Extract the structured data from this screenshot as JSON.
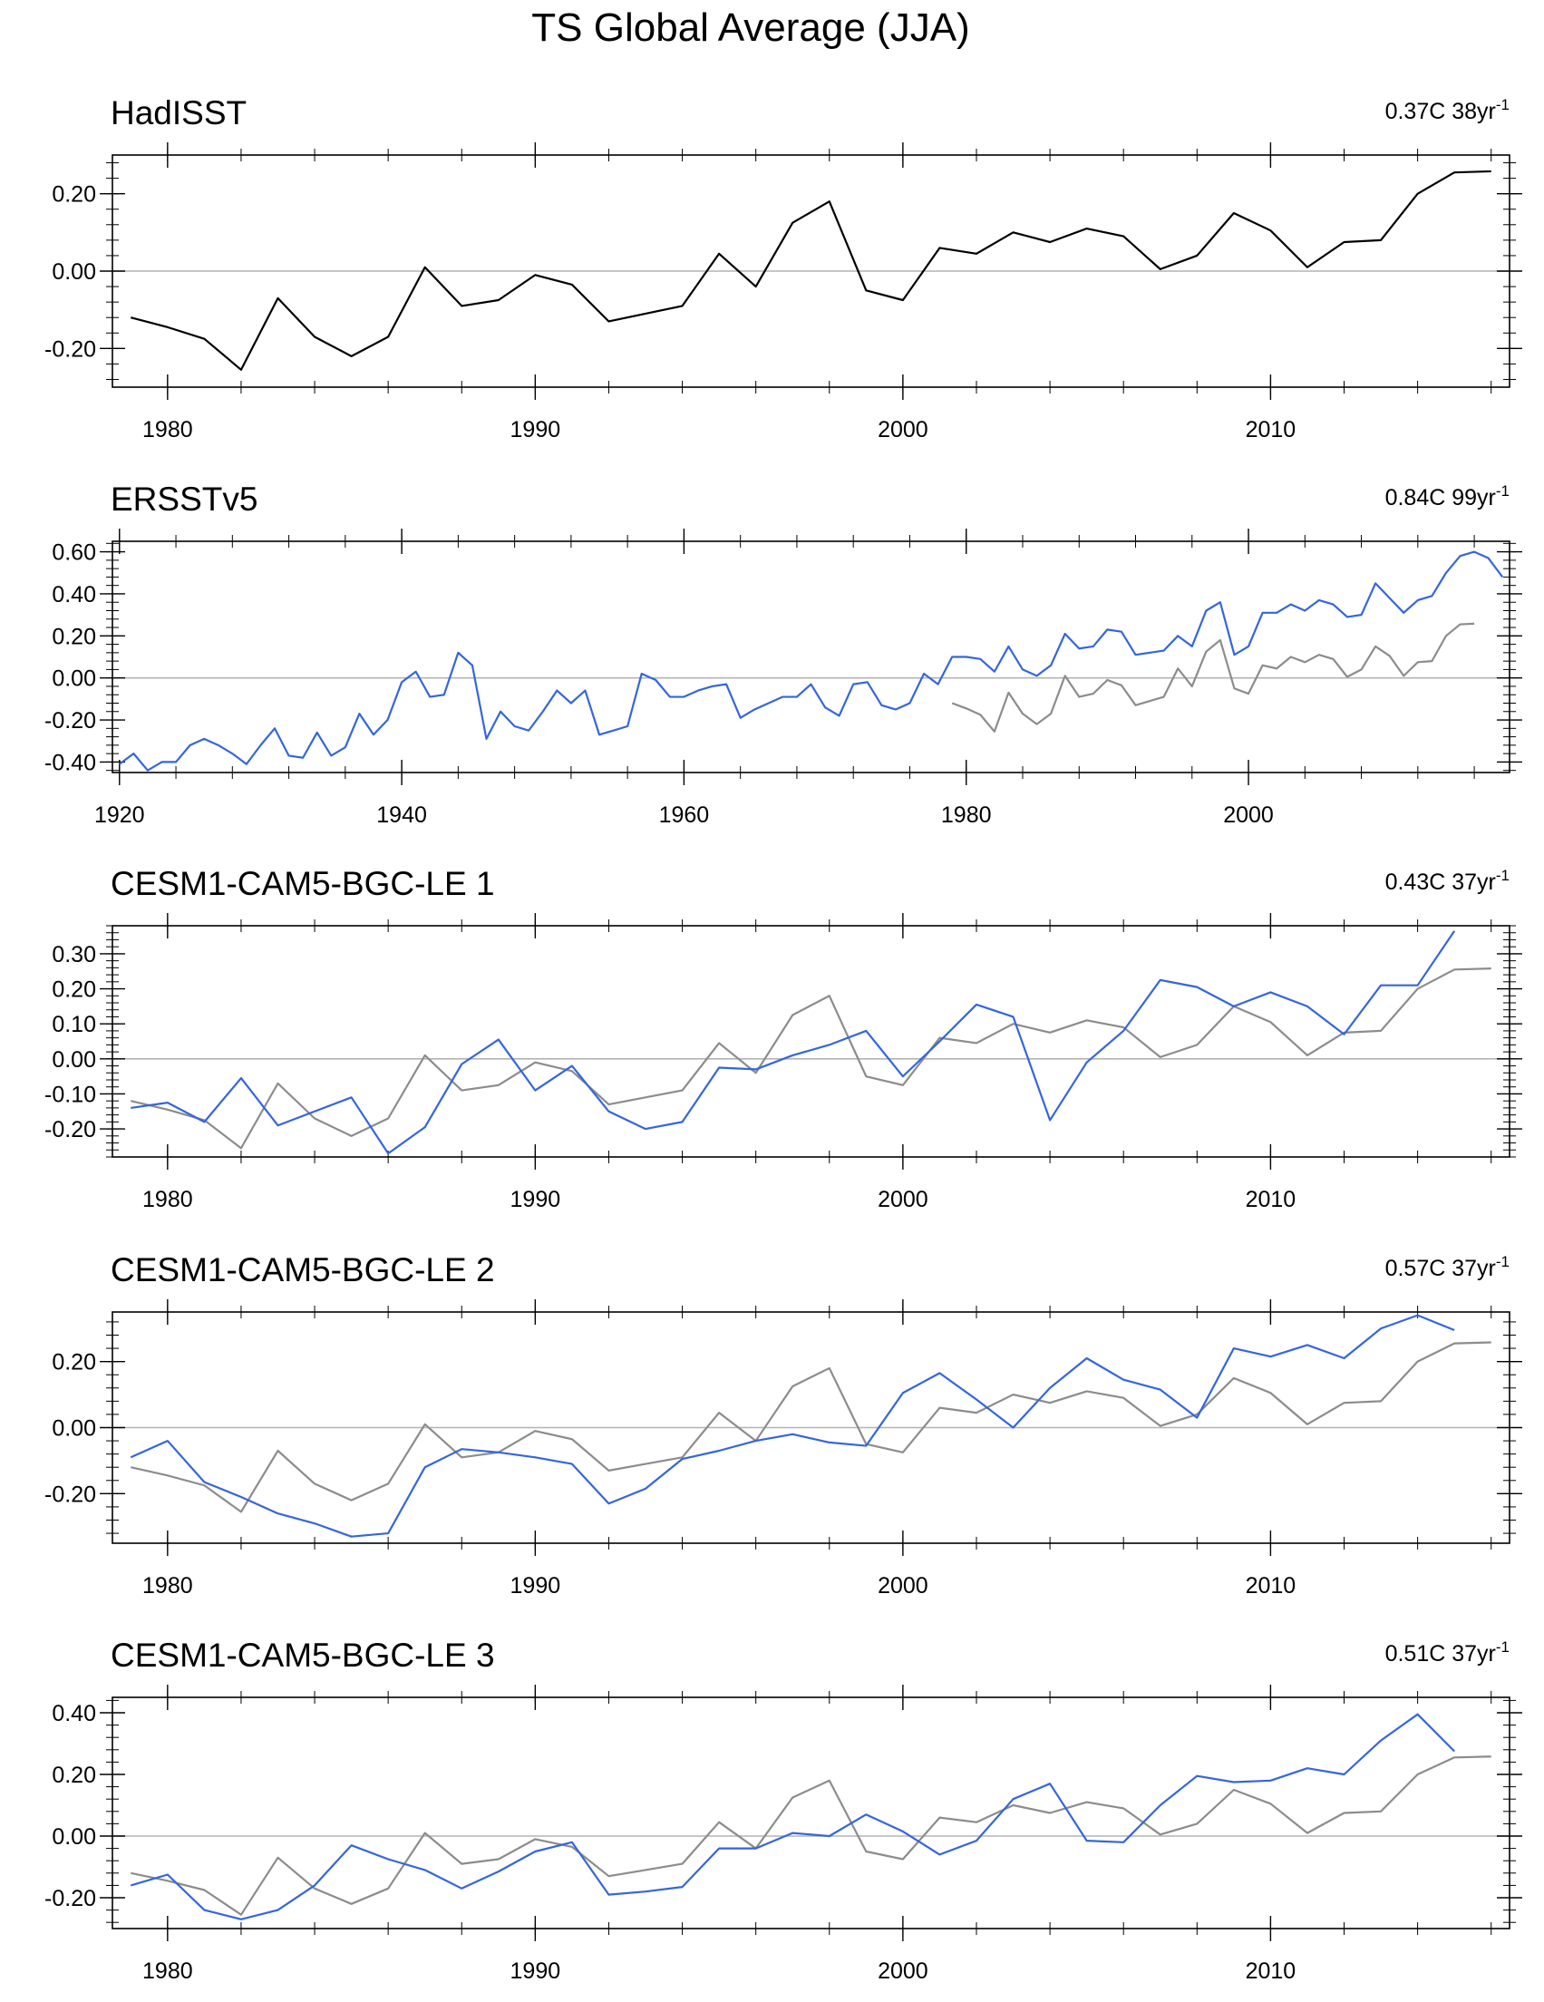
{
  "figure_title": "TS Global Average (JJA)",
  "colors": {
    "observed": "#000000",
    "reference": "#8c8c8c",
    "model": "#3366dd",
    "zero_line": "#b3b3b3",
    "axis": "#000000"
  },
  "chart_data": [
    {
      "type": "line",
      "title": "HadISST",
      "trend_label": {
        "value": "0.37C",
        "period": "38yr",
        "exponent": "-1"
      },
      "xlim": [
        1978.5,
        2016.5
      ],
      "ylim": [
        -0.3,
        0.3
      ],
      "xticks": [
        1980,
        1990,
        2000,
        2010
      ],
      "yticks": [
        -0.2,
        0.0,
        0.2
      ],
      "ytick_labels": [
        "-0.20",
        "0.00",
        "0.20"
      ],
      "series": [
        {
          "name": "HadISST",
          "role": "observed",
          "x_start": 1979,
          "values": [
            -0.12,
            -0.145,
            -0.175,
            -0.255,
            -0.07,
            -0.17,
            -0.22,
            -0.17,
            0.01,
            -0.09,
            -0.075,
            -0.01,
            -0.035,
            -0.13,
            -0.11,
            -0.09,
            0.045,
            -0.04,
            0.125,
            0.18,
            -0.05,
            -0.075,
            0.06,
            0.045,
            0.1,
            0.075,
            0.11,
            0.09,
            0.005,
            0.04,
            0.15,
            0.105,
            0.01,
            0.075,
            0.08,
            0.2,
            0.255,
            0.258
          ]
        }
      ]
    },
    {
      "type": "line",
      "title": "ERSSTv5",
      "trend_label": {
        "value": "0.84C",
        "period": "99yr",
        "exponent": "-1"
      },
      "xlim": [
        1919.5,
        2018.5
      ],
      "ylim": [
        -0.45,
        0.65
      ],
      "xticks": [
        1920,
        1940,
        1960,
        1980,
        2000
      ],
      "yticks": [
        -0.4,
        -0.2,
        0.0,
        0.2,
        0.4,
        0.6
      ],
      "ytick_labels": [
        "-0.40",
        "-0.20",
        "0.00",
        "0.20",
        "0.40",
        "0.60"
      ],
      "series": [
        {
          "name": "ERSSTv5",
          "role": "model",
          "x_start": 1920,
          "values": [
            -0.41,
            -0.36,
            -0.44,
            -0.4,
            -0.4,
            -0.32,
            -0.29,
            -0.32,
            -0.36,
            -0.41,
            -0.32,
            -0.24,
            -0.37,
            -0.38,
            -0.26,
            -0.37,
            -0.33,
            -0.17,
            -0.27,
            -0.2,
            -0.02,
            0.03,
            -0.09,
            -0.08,
            0.12,
            0.06,
            -0.29,
            -0.16,
            -0.23,
            -0.25,
            -0.16,
            -0.06,
            -0.12,
            -0.06,
            -0.27,
            -0.25,
            -0.23,
            0.02,
            -0.01,
            -0.09,
            -0.09,
            -0.06,
            -0.04,
            -0.03,
            -0.19,
            -0.15,
            -0.12,
            -0.09,
            -0.09,
            -0.03,
            -0.14,
            -0.18,
            -0.03,
            -0.02,
            -0.13,
            -0.15,
            -0.12,
            0.02,
            -0.03,
            0.1,
            0.1,
            0.09,
            0.03,
            0.15,
            0.04,
            0.01,
            0.06,
            0.21,
            0.14,
            0.15,
            0.23,
            0.22,
            0.11,
            0.12,
            0.13,
            0.2,
            0.15,
            0.32,
            0.36,
            0.11,
            0.15,
            0.31,
            0.31,
            0.35,
            0.32,
            0.37,
            0.35,
            0.29,
            0.3,
            0.45,
            0.38,
            0.31,
            0.37,
            0.39,
            0.5,
            0.58,
            0.6,
            0.57,
            0.48
          ]
        },
        {
          "name": "HadISST",
          "role": "reference",
          "x_start": 1979,
          "values": [
            -0.12,
            -0.145,
            -0.175,
            -0.255,
            -0.07,
            -0.17,
            -0.22,
            -0.17,
            0.01,
            -0.09,
            -0.075,
            -0.01,
            -0.035,
            -0.13,
            -0.11,
            -0.09,
            0.045,
            -0.04,
            0.125,
            0.18,
            -0.05,
            -0.075,
            0.06,
            0.045,
            0.1,
            0.075,
            0.11,
            0.09,
            0.005,
            0.04,
            0.15,
            0.105,
            0.01,
            0.075,
            0.08,
            0.2,
            0.255,
            0.258
          ]
        }
      ]
    },
    {
      "type": "line",
      "title": "CESM1-CAM5-BGC-LE 1",
      "trend_label": {
        "value": "0.43C",
        "period": "37yr",
        "exponent": "-1"
      },
      "xlim": [
        1978.5,
        2016.5
      ],
      "ylim": [
        -0.28,
        0.38
      ],
      "xticks": [
        1980,
        1990,
        2000,
        2010
      ],
      "yticks": [
        -0.2,
        -0.1,
        0.0,
        0.1,
        0.2,
        0.3
      ],
      "ytick_labels": [
        "-0.20",
        "-0.10",
        "0.00",
        "0.10",
        "0.20",
        "0.30"
      ],
      "series": [
        {
          "name": "HadISST",
          "role": "reference",
          "x_start": 1979,
          "values": [
            -0.12,
            -0.145,
            -0.175,
            -0.255,
            -0.07,
            -0.17,
            -0.22,
            -0.17,
            0.01,
            -0.09,
            -0.075,
            -0.01,
            -0.035,
            -0.13,
            -0.11,
            -0.09,
            0.045,
            -0.04,
            0.125,
            0.18,
            -0.05,
            -0.075,
            0.06,
            0.045,
            0.1,
            0.075,
            0.11,
            0.09,
            0.005,
            0.04,
            0.15,
            0.105,
            0.01,
            0.075,
            0.08,
            0.2,
            0.255,
            0.258
          ]
        },
        {
          "name": "CESM1-CAM5-BGC-LE 1",
          "role": "model",
          "x_start": 1979,
          "values": [
            -0.14,
            -0.125,
            -0.18,
            -0.055,
            -0.19,
            -0.15,
            -0.11,
            -0.27,
            -0.195,
            -0.015,
            0.055,
            -0.09,
            -0.02,
            -0.15,
            -0.2,
            -0.18,
            -0.025,
            -0.03,
            0.01,
            0.04,
            0.08,
            -0.05,
            0.05,
            0.155,
            0.12,
            -0.175,
            -0.01,
            0.08,
            0.225,
            0.205,
            0.15,
            0.19,
            0.15,
            0.07,
            0.21,
            0.21,
            0.365
          ]
        }
      ]
    },
    {
      "type": "line",
      "title": "CESM1-CAM5-BGC-LE 2",
      "trend_label": {
        "value": "0.57C",
        "period": "37yr",
        "exponent": "-1"
      },
      "xlim": [
        1978.5,
        2016.5
      ],
      "ylim": [
        -0.35,
        0.35
      ],
      "xticks": [
        1980,
        1990,
        2000,
        2010
      ],
      "yticks": [
        -0.2,
        0.0,
        0.2
      ],
      "ytick_labels": [
        "-0.20",
        "0.00",
        "0.20"
      ],
      "series": [
        {
          "name": "HadISST",
          "role": "reference",
          "x_start": 1979,
          "values": [
            -0.12,
            -0.145,
            -0.175,
            -0.255,
            -0.07,
            -0.17,
            -0.22,
            -0.17,
            0.01,
            -0.09,
            -0.075,
            -0.01,
            -0.035,
            -0.13,
            -0.11,
            -0.09,
            0.045,
            -0.04,
            0.125,
            0.18,
            -0.05,
            -0.075,
            0.06,
            0.045,
            0.1,
            0.075,
            0.11,
            0.09,
            0.005,
            0.04,
            0.15,
            0.105,
            0.01,
            0.075,
            0.08,
            0.2,
            0.255,
            0.258
          ]
        },
        {
          "name": "CESM1-CAM5-BGC-LE 2",
          "role": "model",
          "x_start": 1979,
          "values": [
            -0.09,
            -0.04,
            -0.165,
            -0.21,
            -0.26,
            -0.29,
            -0.33,
            -0.32,
            -0.12,
            -0.065,
            -0.075,
            -0.09,
            -0.11,
            -0.23,
            -0.185,
            -0.095,
            -0.07,
            -0.04,
            -0.02,
            -0.045,
            -0.055,
            0.105,
            0.165,
            0.085,
            0.0,
            0.12,
            0.21,
            0.145,
            0.115,
            0.03,
            0.24,
            0.215,
            0.25,
            0.21,
            0.3,
            0.34,
            0.295
          ]
        }
      ]
    },
    {
      "type": "line",
      "title": "CESM1-CAM5-BGC-LE 3",
      "trend_label": {
        "value": "0.51C",
        "period": "37yr",
        "exponent": "-1"
      },
      "xlim": [
        1978.5,
        2016.5
      ],
      "ylim": [
        -0.3,
        0.45
      ],
      "xticks": [
        1980,
        1990,
        2000,
        2010
      ],
      "yticks": [
        -0.2,
        0.0,
        0.2,
        0.4
      ],
      "ytick_labels": [
        "-0.20",
        "0.00",
        "0.20",
        "0.40"
      ],
      "series": [
        {
          "name": "HadISST",
          "role": "reference",
          "x_start": 1979,
          "values": [
            -0.12,
            -0.145,
            -0.175,
            -0.255,
            -0.07,
            -0.17,
            -0.22,
            -0.17,
            0.01,
            -0.09,
            -0.075,
            -0.01,
            -0.035,
            -0.13,
            -0.11,
            -0.09,
            0.045,
            -0.04,
            0.125,
            0.18,
            -0.05,
            -0.075,
            0.06,
            0.045,
            0.1,
            0.075,
            0.11,
            0.09,
            0.005,
            0.04,
            0.15,
            0.105,
            0.01,
            0.075,
            0.08,
            0.2,
            0.255,
            0.258
          ]
        },
        {
          "name": "CESM1-CAM5-BGC-LE 3",
          "role": "model",
          "x_start": 1979,
          "values": [
            -0.16,
            -0.125,
            -0.24,
            -0.27,
            -0.24,
            -0.16,
            -0.03,
            -0.075,
            -0.11,
            -0.17,
            -0.115,
            -0.05,
            -0.02,
            -0.19,
            -0.18,
            -0.165,
            -0.04,
            -0.04,
            0.01,
            0.0,
            0.07,
            0.015,
            -0.06,
            -0.015,
            0.12,
            0.17,
            -0.015,
            -0.02,
            0.1,
            0.195,
            0.175,
            0.18,
            0.22,
            0.2,
            0.31,
            0.395,
            0.275
          ]
        }
      ]
    }
  ]
}
